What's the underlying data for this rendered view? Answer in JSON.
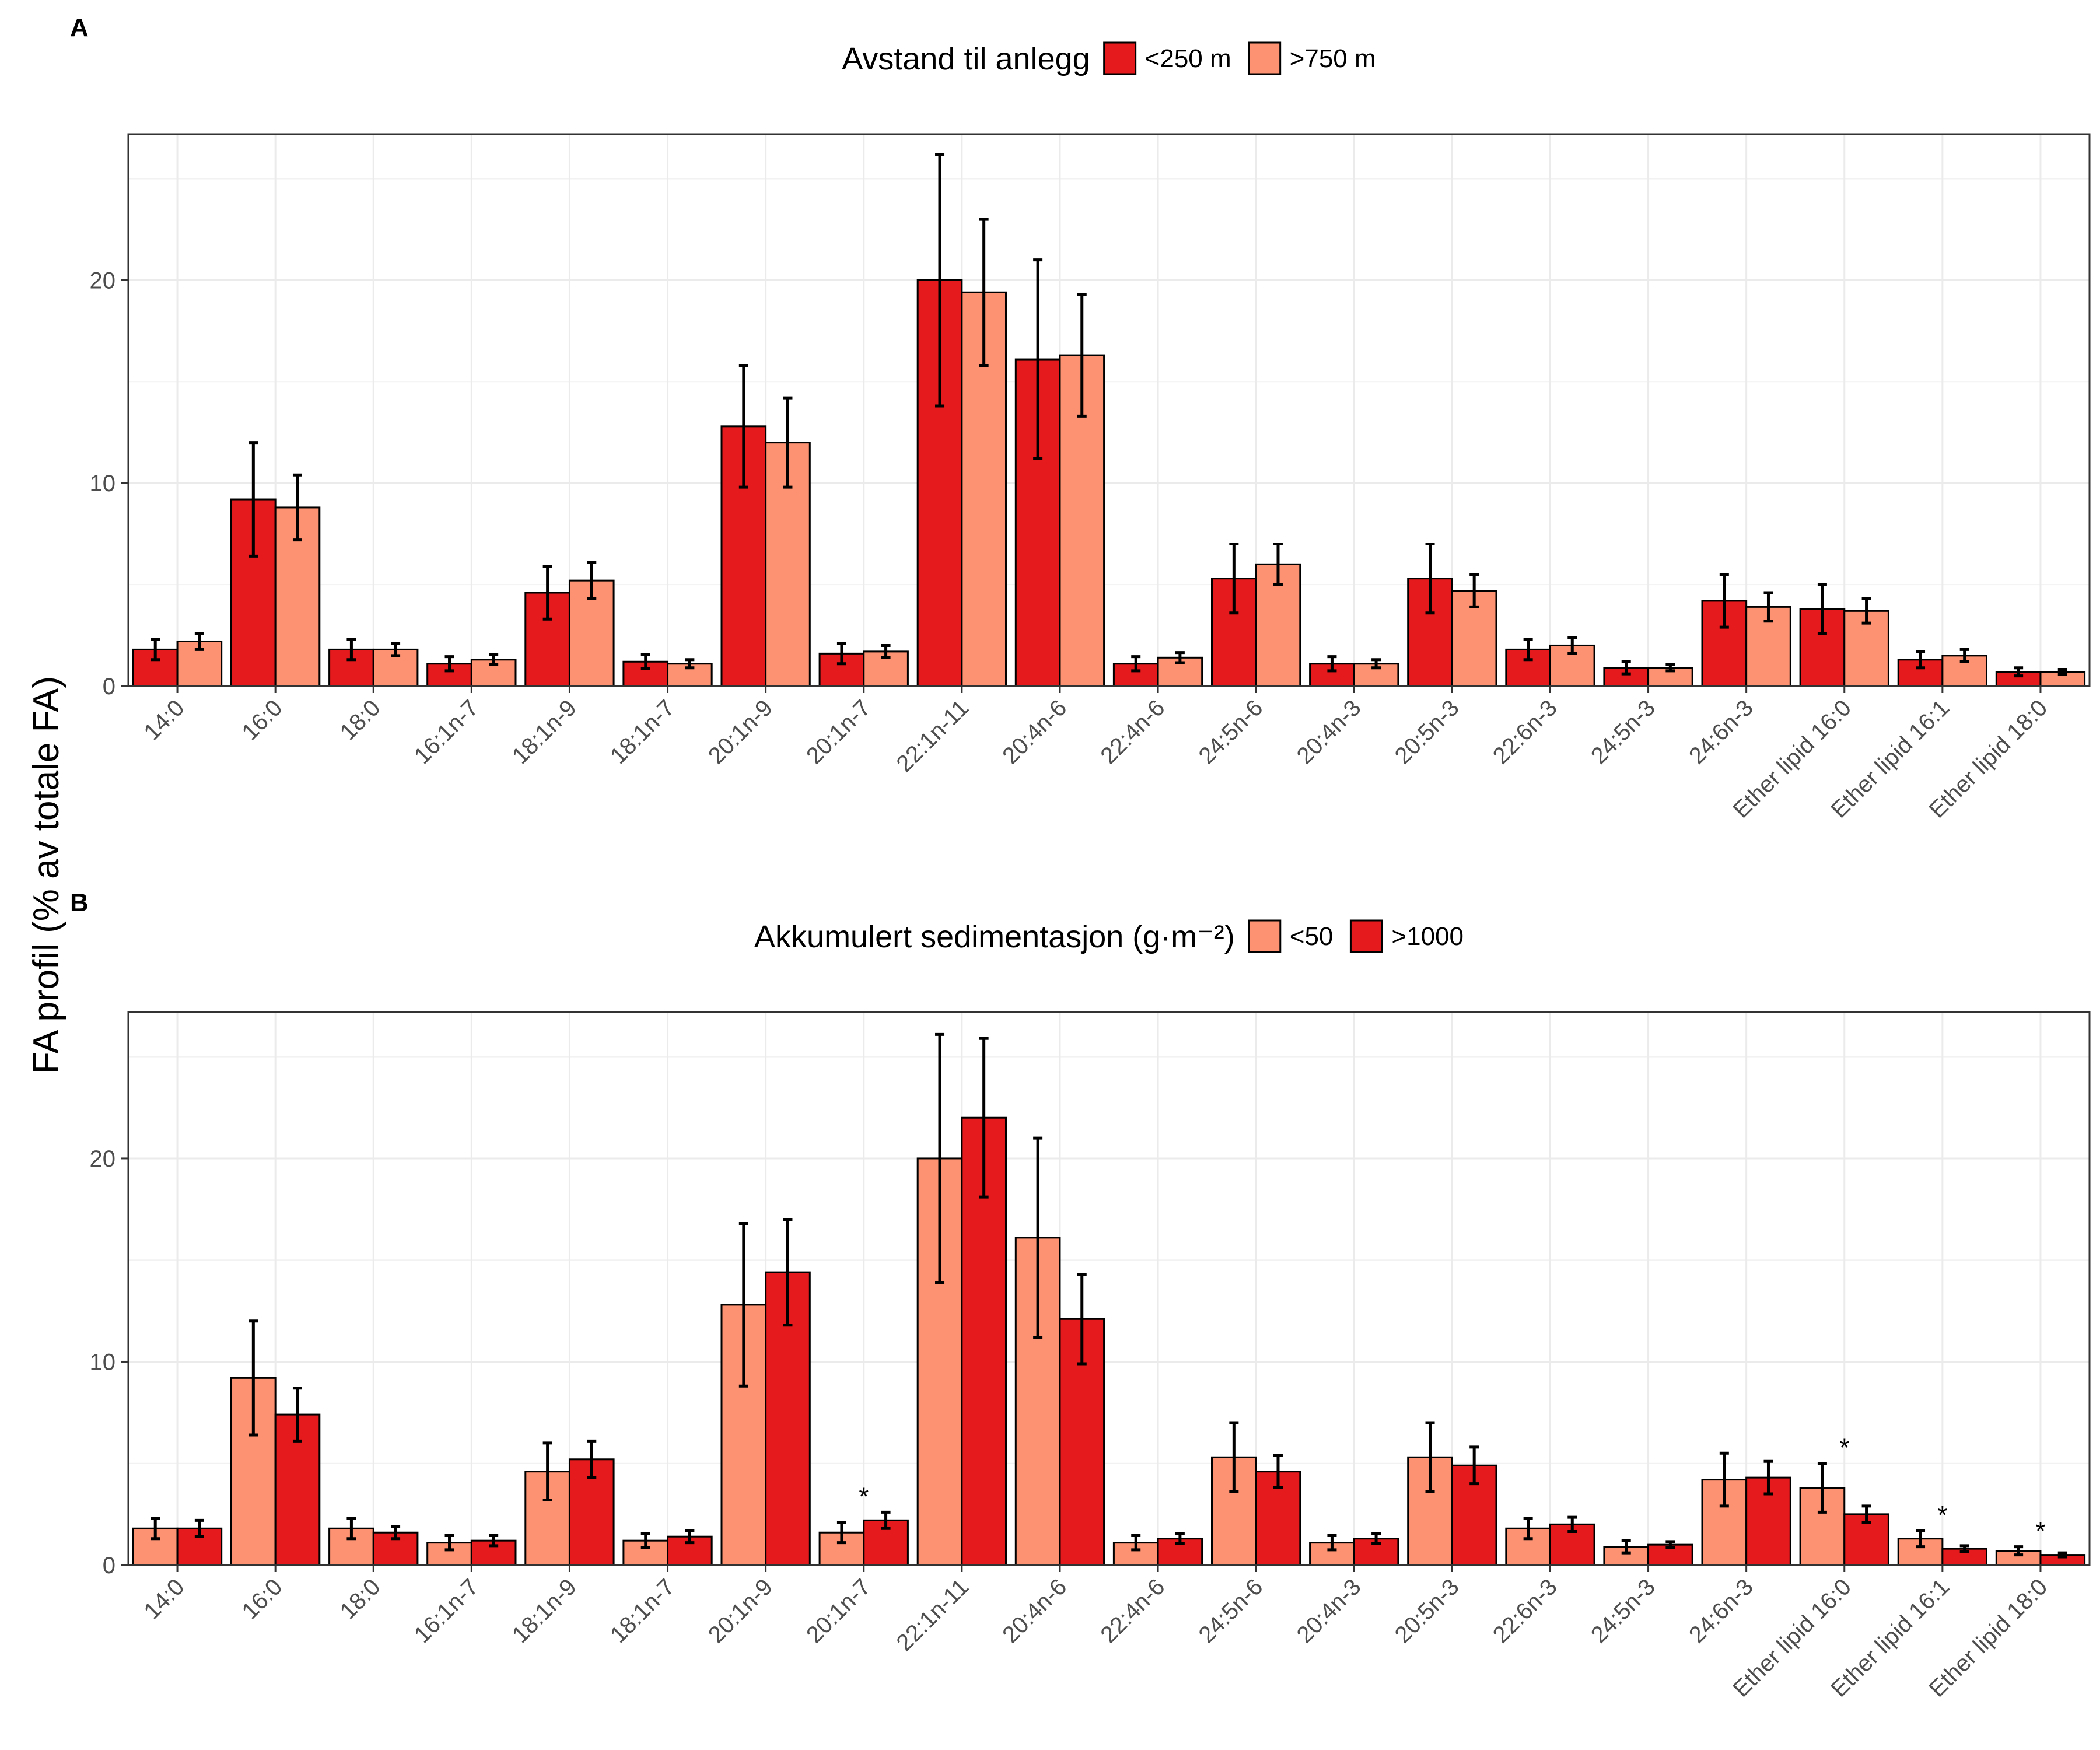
{
  "figure": {
    "ylabel": "FA profil (% av totale FA)"
  },
  "chart_data": [
    {
      "type": "bar",
      "panel_label": "A",
      "legend": {
        "title": "Avstand til anlegg",
        "position": "top"
      },
      "ylim": [
        0,
        27.2
      ],
      "yticks": [
        0,
        10,
        20
      ],
      "grid": true,
      "categories": [
        "14:0",
        "16:0",
        "18:0",
        "16:1n-7",
        "18:1n-9",
        "18:1n-7",
        "20:1n-9",
        "20:1n-7",
        "22:1n-11",
        "20:4n-6",
        "22:4n-6",
        "24:5n-6",
        "20:4n-3",
        "20:5n-3",
        "22:6n-3",
        "24:5n-3",
        "24:6n-3",
        "Ether lipid 16:0",
        "Ether lipid 16:1",
        "Ether lipid 18:0"
      ],
      "series": [
        {
          "name": "<250 m",
          "color": "#e41a1c",
          "values": [
            1.8,
            9.2,
            1.8,
            1.1,
            4.6,
            1.2,
            12.8,
            1.6,
            20.0,
            16.1,
            1.1,
            5.3,
            1.1,
            5.3,
            1.8,
            0.9,
            4.2,
            3.8,
            1.3,
            0.7
          ],
          "errors": [
            0.5,
            2.8,
            0.5,
            0.35,
            1.3,
            0.35,
            3.0,
            0.5,
            6.2,
            4.9,
            0.35,
            1.7,
            0.35,
            1.7,
            0.5,
            0.3,
            1.3,
            1.2,
            0.4,
            0.2
          ]
        },
        {
          "name": ">750 m",
          "color": "#fc9272",
          "values": [
            2.2,
            8.8,
            1.8,
            1.3,
            5.2,
            1.1,
            12.0,
            1.7,
            19.4,
            16.3,
            1.4,
            6.0,
            1.1,
            4.7,
            2.0,
            0.9,
            3.9,
            3.7,
            1.5,
            0.7
          ],
          "errors": [
            0.4,
            1.6,
            0.3,
            0.25,
            0.9,
            0.2,
            2.2,
            0.3,
            3.6,
            3.0,
            0.25,
            1.0,
            0.2,
            0.8,
            0.4,
            0.15,
            0.7,
            0.6,
            0.3,
            0.12
          ]
        }
      ]
    },
    {
      "type": "bar",
      "panel_label": "B",
      "legend": {
        "title": "Akkumulert sedimentasjon (g·m⁻²)",
        "position": "top"
      },
      "ylim": [
        0,
        27.2
      ],
      "yticks": [
        0,
        10,
        20
      ],
      "grid": true,
      "categories": [
        "14:0",
        "16:0",
        "18:0",
        "16:1n-7",
        "18:1n-9",
        "18:1n-7",
        "20:1n-9",
        "20:1n-7",
        "22:1n-11",
        "20:4n-6",
        "22:4n-6",
        "24:5n-6",
        "20:4n-3",
        "20:5n-3",
        "22:6n-3",
        "24:5n-3",
        "24:6n-3",
        "Ether lipid 16:0",
        "Ether lipid 16:1",
        "Ether lipid 18:0"
      ],
      "significance": {
        "marker": "*",
        "categories": [
          "20:1n-7",
          "Ether lipid 16:0",
          "Ether lipid 16:1",
          "Ether lipid 18:0"
        ]
      },
      "series": [
        {
          "name": "<50",
          "color": "#fc9272",
          "values": [
            1.8,
            9.2,
            1.8,
            1.1,
            4.6,
            1.2,
            12.8,
            1.6,
            20.0,
            16.1,
            1.1,
            5.3,
            1.1,
            5.3,
            1.8,
            0.9,
            4.2,
            3.8,
            1.3,
            0.7
          ],
          "errors": [
            0.5,
            2.8,
            0.5,
            0.35,
            1.4,
            0.35,
            4.0,
            0.5,
            6.1,
            4.9,
            0.35,
            1.7,
            0.35,
            1.7,
            0.5,
            0.3,
            1.3,
            1.2,
            0.4,
            0.2
          ]
        },
        {
          "name": ">1000",
          "color": "#e41a1c",
          "values": [
            1.8,
            7.4,
            1.6,
            1.2,
            5.2,
            1.4,
            14.4,
            2.2,
            22.0,
            12.1,
            1.3,
            4.6,
            1.3,
            4.9,
            2.0,
            1.0,
            4.3,
            2.5,
            0.8,
            0.5
          ],
          "errors": [
            0.4,
            1.3,
            0.3,
            0.25,
            0.9,
            0.3,
            2.6,
            0.4,
            3.9,
            2.2,
            0.25,
            0.8,
            0.25,
            0.9,
            0.35,
            0.15,
            0.8,
            0.4,
            0.15,
            0.1
          ]
        }
      ]
    }
  ]
}
